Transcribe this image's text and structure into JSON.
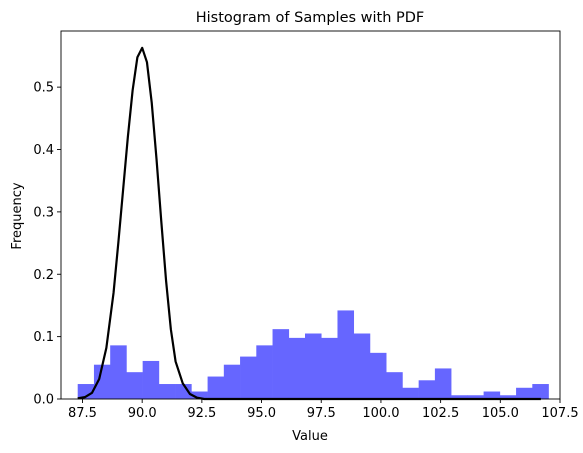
{
  "chart_data": {
    "type": "bar",
    "title": "Histogram of Samples with PDF",
    "xlabel": "Value",
    "ylabel": "Frequency",
    "xlim": [
      86.6,
      107.5
    ],
    "ylim": [
      0,
      0.59
    ],
    "xticks": [
      87.5,
      90.0,
      92.5,
      95.0,
      97.5,
      100.0,
      102.5,
      105.0,
      107.5
    ],
    "xtick_labels": [
      "87.5",
      "90.0",
      "92.5",
      "95.0",
      "97.5",
      "100.0",
      "102.5",
      "105.0",
      "107.5"
    ],
    "yticks": [
      0.0,
      0.1,
      0.2,
      0.3,
      0.4,
      0.5
    ],
    "ytick_labels": [
      "0.0",
      "0.1",
      "0.2",
      "0.3",
      "0.4",
      "0.5"
    ],
    "grid": false,
    "colors": {
      "histogram": "#6666ff",
      "pdf": "#000000"
    },
    "series": [
      {
        "type": "histogram",
        "bin_edges": [
          87.3,
          87.98,
          88.66,
          89.34,
          90.02,
          90.7,
          91.38,
          92.06,
          92.74,
          93.42,
          94.1,
          94.78,
          95.46,
          96.14,
          96.82,
          97.5,
          98.18,
          98.86,
          99.54,
          100.22,
          100.9,
          101.58,
          102.26,
          102.94,
          103.62,
          104.3,
          104.98,
          105.66,
          106.34,
          107.02
        ],
        "values": [
          0.024,
          0.055,
          0.086,
          0.043,
          0.061,
          0.024,
          0.024,
          0.012,
          0.036,
          0.055,
          0.068,
          0.086,
          0.112,
          0.098,
          0.105,
          0.098,
          0.142,
          0.105,
          0.074,
          0.043,
          0.018,
          0.03,
          0.049,
          0.006,
          0.006,
          0.012,
          0.006,
          0.018,
          0.024
        ]
      },
      {
        "type": "line",
        "x": [
          87.3,
          87.6,
          87.9,
          88.2,
          88.5,
          88.8,
          89.0,
          89.2,
          89.4,
          89.6,
          89.8,
          90.0,
          90.2,
          90.4,
          90.6,
          90.8,
          91.0,
          91.2,
          91.4,
          91.7,
          92.0,
          92.3,
          92.6,
          93.0,
          94.0,
          96.0,
          98.0,
          100.0,
          102.0,
          104.0,
          106.7
        ],
        "y": [
          0.001,
          0.003,
          0.01,
          0.032,
          0.082,
          0.17,
          0.25,
          0.335,
          0.42,
          0.495,
          0.548,
          0.563,
          0.54,
          0.475,
          0.385,
          0.285,
          0.19,
          0.112,
          0.06,
          0.025,
          0.008,
          0.002,
          0.0,
          0.0,
          0.0,
          0.0,
          0.0,
          0.0,
          0.0,
          0.0,
          0.0
        ]
      }
    ]
  }
}
